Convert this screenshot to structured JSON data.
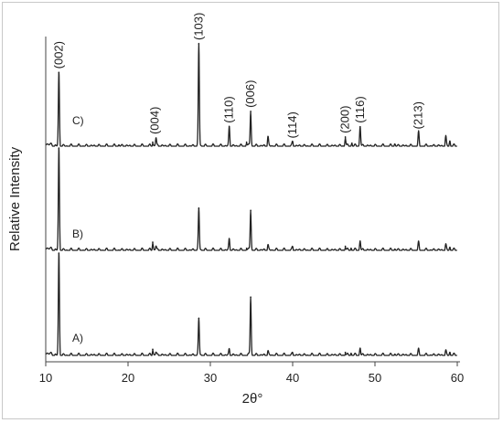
{
  "chart_data": {
    "type": "line",
    "title": "",
    "xlabel": "2θ°",
    "ylabel": "Relative Intensity",
    "xlim": [
      10,
      60
    ],
    "xticks": [
      "10",
      "20",
      "30",
      "40",
      "50",
      "60"
    ],
    "grid": false,
    "legend": "none",
    "colors": {
      "line": "#222222",
      "axis": "#444444",
      "frame": "#c8c8c8"
    },
    "peak_labels": [
      {
        "text": "(002)",
        "x": 11.6
      },
      {
        "text": "(004)",
        "x": 23.3
      },
      {
        "text": "(103)",
        "x": 28.6
      },
      {
        "text": "(110)",
        "x": 32.3
      },
      {
        "text": "(006)",
        "x": 34.9
      },
      {
        "text": "(114)",
        "x": 40.0
      },
      {
        "text": "(200)",
        "x": 46.4
      },
      {
        "text": "(116)",
        "x": 48.2
      },
      {
        "text": "(213)",
        "x": 55.3
      }
    ],
    "series": [
      {
        "name": "C)",
        "peaks": [
          {
            "x": 11.6,
            "y": 0.72
          },
          {
            "x": 18.9,
            "y": 0.01
          },
          {
            "x": 23.0,
            "y": 0.04
          },
          {
            "x": 23.4,
            "y": 0.08
          },
          {
            "x": 28.6,
            "y": 1.0
          },
          {
            "x": 32.3,
            "y": 0.19
          },
          {
            "x": 34.4,
            "y": 0.04
          },
          {
            "x": 34.9,
            "y": 0.34
          },
          {
            "x": 37.0,
            "y": 0.09
          },
          {
            "x": 40.0,
            "y": 0.04
          },
          {
            "x": 46.4,
            "y": 0.09
          },
          {
            "x": 47.2,
            "y": 0.03
          },
          {
            "x": 48.2,
            "y": 0.19
          },
          {
            "x": 52.4,
            "y": 0.02
          },
          {
            "x": 55.3,
            "y": 0.13
          },
          {
            "x": 58.6,
            "y": 0.09
          },
          {
            "x": 59.1,
            "y": 0.05
          }
        ]
      },
      {
        "name": "B)",
        "peaks": [
          {
            "x": 11.6,
            "y": 1.0
          },
          {
            "x": 23.0,
            "y": 0.08
          },
          {
            "x": 23.4,
            "y": 0.04
          },
          {
            "x": 28.6,
            "y": 0.41
          },
          {
            "x": 32.3,
            "y": 0.11
          },
          {
            "x": 34.4,
            "y": 0.02
          },
          {
            "x": 34.9,
            "y": 0.39
          },
          {
            "x": 37.0,
            "y": 0.05
          },
          {
            "x": 40.0,
            "y": 0.03
          },
          {
            "x": 46.4,
            "y": 0.04
          },
          {
            "x": 47.1,
            "y": 0.02
          },
          {
            "x": 48.2,
            "y": 0.09
          },
          {
            "x": 52.4,
            "y": 0.01
          },
          {
            "x": 55.3,
            "y": 0.07
          },
          {
            "x": 58.6,
            "y": 0.05
          },
          {
            "x": 59.1,
            "y": 0.03
          }
        ]
      },
      {
        "name": "A)",
        "peaks": [
          {
            "x": 11.6,
            "y": 1.0
          },
          {
            "x": 23.0,
            "y": 0.06
          },
          {
            "x": 23.4,
            "y": 0.03
          },
          {
            "x": 28.6,
            "y": 0.36
          },
          {
            "x": 32.3,
            "y": 0.06
          },
          {
            "x": 34.9,
            "y": 0.57
          },
          {
            "x": 37.0,
            "y": 0.04
          },
          {
            "x": 40.0,
            "y": 0.02
          },
          {
            "x": 46.4,
            "y": 0.03
          },
          {
            "x": 47.1,
            "y": 0.02
          },
          {
            "x": 48.2,
            "y": 0.07
          },
          {
            "x": 52.4,
            "y": 0.01
          },
          {
            "x": 55.3,
            "y": 0.05
          },
          {
            "x": 58.6,
            "y": 0.04
          },
          {
            "x": 59.1,
            "y": 0.03
          }
        ]
      }
    ]
  }
}
